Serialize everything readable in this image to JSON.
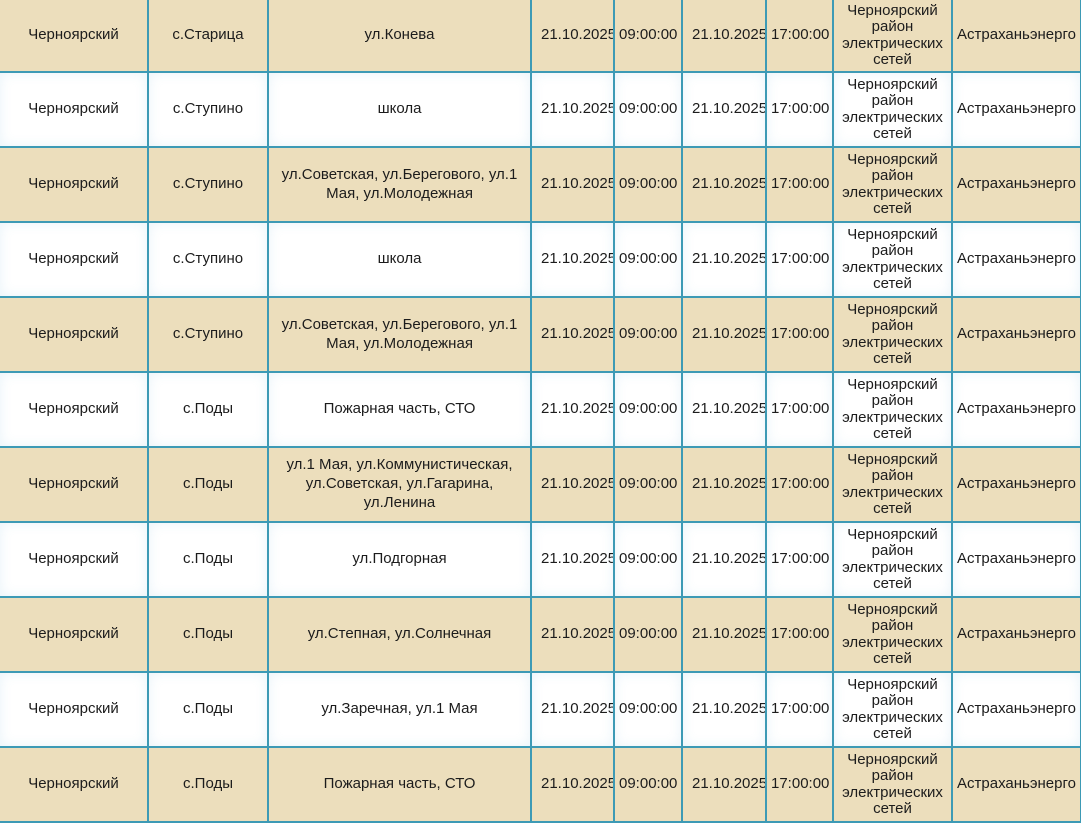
{
  "colors": {
    "border": "#3d9ab5",
    "row_shaded": "#ecdebc",
    "row_plain": "#ffffff",
    "text": "#1c1c1c"
  },
  "table": {
    "cell_keys": [
      "district",
      "settlement",
      "streets",
      "start_date",
      "start_time",
      "end_date",
      "end_time",
      "organization",
      "company"
    ],
    "rows": [
      {
        "district": "Черноярский",
        "settlement": "с.Старица",
        "streets": "ул.Конева",
        "start_date": "21.10.2025",
        "start_time": "09:00:00",
        "end_date": "21.10.2025",
        "end_time": "17:00:00",
        "organization": "Черноярский район электрических сетей",
        "company": "Астраханьэнерго"
      },
      {
        "district": "Черноярский",
        "settlement": "с.Ступино",
        "streets": "школа",
        "start_date": "21.10.2025",
        "start_time": "09:00:00",
        "end_date": "21.10.2025",
        "end_time": "17:00:00",
        "organization": "Черноярский район электрических сетей",
        "company": "Астраханьэнерго"
      },
      {
        "district": "Черноярский",
        "settlement": "с.Ступино",
        "streets": "ул.Советская, ул.Берегового, ул.1 Мая, ул.Молодежная",
        "start_date": "21.10.2025",
        "start_time": "09:00:00",
        "end_date": "21.10.2025",
        "end_time": "17:00:00",
        "organization": "Черноярский район электрических сетей",
        "company": "Астраханьэнерго"
      },
      {
        "district": "Черноярский",
        "settlement": "с.Ступино",
        "streets": "школа",
        "start_date": "21.10.2025",
        "start_time": "09:00:00",
        "end_date": "21.10.2025",
        "end_time": "17:00:00",
        "organization": "Черноярский район электрических сетей",
        "company": "Астраханьэнерго"
      },
      {
        "district": "Черноярский",
        "settlement": "с.Ступино",
        "streets": "ул.Советская, ул.Берегового, ул.1 Мая, ул.Молодежная",
        "start_date": "21.10.2025",
        "start_time": "09:00:00",
        "end_date": "21.10.2025",
        "end_time": "17:00:00",
        "organization": "Черноярский район электрических сетей",
        "company": "Астраханьэнерго"
      },
      {
        "district": "Черноярский",
        "settlement": "с.Поды",
        "streets": "Пожарная часть, СТО",
        "start_date": "21.10.2025",
        "start_time": "09:00:00",
        "end_date": "21.10.2025",
        "end_time": "17:00:00",
        "organization": "Черноярский район электрических сетей",
        "company": "Астраханьэнерго"
      },
      {
        "district": "Черноярский",
        "settlement": "с.Поды",
        "streets": "ул.1 Мая, ул.Коммунистическая, ул.Советская, ул.Гагарина, ул.Ленина",
        "start_date": "21.10.2025",
        "start_time": "09:00:00",
        "end_date": "21.10.2025",
        "end_time": "17:00:00",
        "organization": "Черноярский район электрических сетей",
        "company": "Астраханьэнерго"
      },
      {
        "district": "Черноярский",
        "settlement": "с.Поды",
        "streets": "ул.Подгорная",
        "start_date": "21.10.2025",
        "start_time": "09:00:00",
        "end_date": "21.10.2025",
        "end_time": "17:00:00",
        "organization": "Черноярский район электрических сетей",
        "company": "Астраханьэнерго"
      },
      {
        "district": "Черноярский",
        "settlement": "с.Поды",
        "streets": "ул.Степная, ул.Солнечная",
        "start_date": "21.10.2025",
        "start_time": "09:00:00",
        "end_date": "21.10.2025",
        "end_time": "17:00:00",
        "organization": "Черноярский район электрических сетей",
        "company": "Астраханьэнерго"
      },
      {
        "district": "Черноярский",
        "settlement": "с.Поды",
        "streets": "ул.Заречная, ул.1 Мая",
        "start_date": "21.10.2025",
        "start_time": "09:00:00",
        "end_date": "21.10.2025",
        "end_time": "17:00:00",
        "organization": "Черноярский район электрических сетей",
        "company": "Астраханьэнерго"
      },
      {
        "district": "Черноярский",
        "settlement": "с.Поды",
        "streets": "Пожарная часть, СТО",
        "start_date": "21.10.2025",
        "start_time": "09:00:00",
        "end_date": "21.10.2025",
        "end_time": "17:00:00",
        "organization": "Черноярский район электрических сетей",
        "company": "Астраханьэнерго"
      }
    ]
  }
}
